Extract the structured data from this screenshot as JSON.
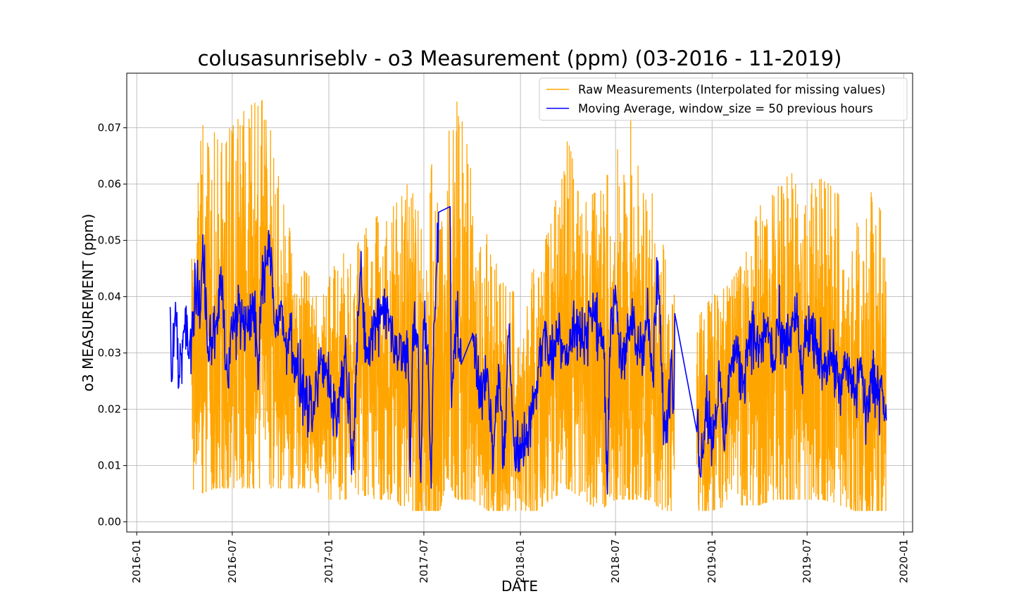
{
  "chart_data": {
    "type": "line",
    "title": "colusasunriseblv - o3 Measurement (ppm) (03-2016 - 11-2019)",
    "xlabel": "DATE",
    "ylabel": "o3 MEASUREMENT (ppm)",
    "x_range": [
      "2015-12-13",
      "2020-01-18"
    ],
    "ylim": [
      -0.0018,
      0.0797
    ],
    "x_ticks": [
      "2016-01",
      "2016-07",
      "2017-01",
      "2017-07",
      "2018-01",
      "2018-07",
      "2019-01",
      "2019-07",
      "2020-01"
    ],
    "y_ticks": [
      "0.00",
      "0.01",
      "0.02",
      "0.03",
      "0.04",
      "0.05",
      "0.06",
      "0.07"
    ],
    "grid": true,
    "legend_position": "top-right",
    "series": [
      {
        "name": "Raw Measurements (Interpolated for missing values)",
        "color": "#FFA500",
        "band_points": [
          [
            "2016-03-04",
            0.025,
            0.045,
            0.019
          ],
          [
            "2016-04-15",
            0.03,
            0.064,
            0.006
          ],
          [
            "2016-05-01",
            0.03,
            0.072,
            0.005
          ],
          [
            "2016-06-01",
            0.031,
            0.069,
            0.006
          ],
          [
            "2016-07-01",
            0.033,
            0.07,
            0.006
          ],
          [
            "2016-08-01",
            0.035,
            0.074,
            0.006
          ],
          [
            "2016-09-01",
            0.034,
            0.075,
            0.006
          ],
          [
            "2016-10-01",
            0.03,
            0.06,
            0.006
          ],
          [
            "2016-11-01",
            0.026,
            0.046,
            0.006
          ],
          [
            "2016-12-01",
            0.024,
            0.043,
            0.006
          ],
          [
            "2017-01-01",
            0.023,
            0.044,
            0.004
          ],
          [
            "2017-02-01",
            0.026,
            0.048,
            0.004
          ],
          [
            "2017-03-01",
            0.028,
            0.051,
            0.005
          ],
          [
            "2017-04-01",
            0.03,
            0.054,
            0.004
          ],
          [
            "2017-05-01",
            0.029,
            0.058,
            0.004
          ],
          [
            "2017-06-01",
            0.028,
            0.06,
            0.002
          ],
          [
            "2017-06-20",
            0.022,
            0.059,
            0.002
          ],
          [
            "2017-07-10",
            0.02,
            0.064,
            0.002
          ],
          [
            "2017-07-20",
            0.02,
            0.065,
            0.002
          ],
          [
            "2017-08-01",
            0.028,
            0.057,
            0.002
          ],
          [
            "2017-08-15",
            0.026,
            0.069,
            0.008
          ],
          [
            "2017-09-01",
            0.03,
            0.076,
            0.004
          ],
          [
            "2017-10-01",
            0.026,
            0.063,
            0.004
          ],
          [
            "2017-11-01",
            0.02,
            0.05,
            0.002
          ],
          [
            "2017-12-01",
            0.018,
            0.042,
            0.002
          ],
          [
            "2018-01-01",
            0.018,
            0.04,
            0.002
          ],
          [
            "2018-02-01",
            0.024,
            0.046,
            0.002
          ],
          [
            "2018-03-01",
            0.027,
            0.053,
            0.004
          ],
          [
            "2018-04-01",
            0.029,
            0.068,
            0.006
          ],
          [
            "2018-05-01",
            0.03,
            0.057,
            0.004
          ],
          [
            "2018-06-01",
            0.029,
            0.059,
            0.002
          ],
          [
            "2018-07-01",
            0.029,
            0.065,
            0.004
          ],
          [
            "2018-08-01",
            0.03,
            0.073,
            0.004
          ],
          [
            "2018-09-01",
            0.028,
            0.064,
            0.004
          ],
          [
            "2018-10-01",
            0.024,
            0.05,
            0.002
          ],
          [
            "2018-10-22",
            0.022,
            0.048,
            0.002
          ],
          [
            "2018-12-03",
            0.018,
            0.036,
            0.002
          ],
          [
            "2019-01-01",
            0.021,
            0.04,
            0.002
          ],
          [
            "2019-02-01",
            0.024,
            0.042,
            0.003
          ],
          [
            "2019-03-01",
            0.027,
            0.046,
            0.003
          ],
          [
            "2019-04-01",
            0.029,
            0.056,
            0.003
          ],
          [
            "2019-05-01",
            0.029,
            0.059,
            0.004
          ],
          [
            "2019-06-01",
            0.028,
            0.062,
            0.004
          ],
          [
            "2019-07-01",
            0.029,
            0.06,
            0.004
          ],
          [
            "2019-08-01",
            0.029,
            0.061,
            0.004
          ],
          [
            "2019-09-01",
            0.027,
            0.058,
            0.003
          ],
          [
            "2019-10-01",
            0.024,
            0.055,
            0.002
          ],
          [
            "2019-11-01",
            0.022,
            0.059,
            0.002
          ],
          [
            "2019-11-29",
            0.021,
            0.053,
            0.002
          ]
        ]
      },
      {
        "name": "Moving Average, window_size = 50 previous hours",
        "color": "#0000FF",
        "points": [
          [
            "2016-03-04",
            0.038
          ],
          [
            "2016-03-08",
            0.025
          ],
          [
            "2016-03-15",
            0.039
          ],
          [
            "2016-03-22",
            0.026
          ],
          [
            "2016-04-01",
            0.035
          ],
          [
            "2016-04-10",
            0.029
          ],
          [
            "2016-04-20",
            0.04
          ],
          [
            "2016-05-01",
            0.037
          ],
          [
            "2016-05-06",
            0.051
          ],
          [
            "2016-05-15",
            0.03
          ],
          [
            "2016-06-01",
            0.035
          ],
          [
            "2016-06-10",
            0.043
          ],
          [
            "2016-06-20",
            0.027
          ],
          [
            "2016-07-01",
            0.034
          ],
          [
            "2016-07-15",
            0.037
          ],
          [
            "2016-08-01",
            0.034
          ],
          [
            "2016-08-10",
            0.04
          ],
          [
            "2016-08-20",
            0.025
          ],
          [
            "2016-08-25",
            0.041
          ],
          [
            "2016-09-05",
            0.046
          ],
          [
            "2016-09-10",
            0.051
          ],
          [
            "2016-09-20",
            0.035
          ],
          [
            "2016-10-01",
            0.038
          ],
          [
            "2016-10-10",
            0.032
          ],
          [
            "2016-10-20",
            0.034
          ],
          [
            "2016-11-01",
            0.026
          ],
          [
            "2016-11-15",
            0.023
          ],
          [
            "2016-12-01",
            0.018
          ],
          [
            "2016-12-15",
            0.028
          ],
          [
            "2017-01-01",
            0.026
          ],
          [
            "2017-01-15",
            0.018
          ],
          [
            "2017-02-01",
            0.03
          ],
          [
            "2017-02-15",
            0.012
          ],
          [
            "2017-03-01",
            0.043
          ],
          [
            "2017-03-15",
            0.029
          ],
          [
            "2017-04-01",
            0.036
          ],
          [
            "2017-04-15",
            0.039
          ],
          [
            "2017-05-01",
            0.034
          ],
          [
            "2017-05-15",
            0.03
          ],
          [
            "2017-06-01",
            0.029
          ],
          [
            "2017-06-05",
            0.008
          ],
          [
            "2017-06-10",
            0.035
          ],
          [
            "2017-06-20",
            0.033
          ],
          [
            "2017-06-25",
            0.007
          ],
          [
            "2017-07-01",
            0.036
          ],
          [
            "2017-07-08",
            0.03
          ],
          [
            "2017-07-15",
            0.006
          ],
          [
            "2017-07-20",
            0.035
          ],
          [
            "2017-07-25",
            0.045
          ],
          [
            "2017-07-29",
            0.055
          ],
          [
            "2017-08-20",
            0.056
          ],
          [
            "2017-08-22",
            0.024
          ],
          [
            "2017-09-01",
            0.036
          ],
          [
            "2017-09-10",
            0.028
          ],
          [
            "2017-10-01",
            0.033
          ],
          [
            "2017-10-15",
            0.025
          ],
          [
            "2017-11-01",
            0.024
          ],
          [
            "2017-11-10",
            0.01
          ],
          [
            "2017-11-20",
            0.028
          ],
          [
            "2017-12-01",
            0.01
          ],
          [
            "2017-12-10",
            0.033
          ],
          [
            "2017-12-20",
            0.015
          ],
          [
            "2018-01-01",
            0.012
          ],
          [
            "2018-01-15",
            0.016
          ],
          [
            "2018-02-01",
            0.025
          ],
          [
            "2018-02-15",
            0.034
          ],
          [
            "2018-03-01",
            0.029
          ],
          [
            "2018-03-15",
            0.034
          ],
          [
            "2018-04-01",
            0.03
          ],
          [
            "2018-04-15",
            0.035
          ],
          [
            "2018-05-01",
            0.032
          ],
          [
            "2018-05-15",
            0.038
          ],
          [
            "2018-06-01",
            0.033
          ],
          [
            "2018-06-10",
            0.03
          ],
          [
            "2018-06-15",
            0.007
          ],
          [
            "2018-06-20",
            0.031
          ],
          [
            "2018-07-01",
            0.042
          ],
          [
            "2018-07-10",
            0.03
          ],
          [
            "2018-07-20",
            0.028
          ],
          [
            "2018-08-01",
            0.037
          ],
          [
            "2018-08-10",
            0.031
          ],
          [
            "2018-08-20",
            0.032
          ],
          [
            "2018-09-01",
            0.036
          ],
          [
            "2018-09-10",
            0.025
          ],
          [
            "2018-09-20",
            0.046
          ],
          [
            "2018-09-28",
            0.023
          ],
          [
            "2018-10-05",
            0.014
          ],
          [
            "2018-10-15",
            0.029
          ],
          [
            "2018-10-20",
            0.02
          ],
          [
            "2018-10-22",
            0.037
          ],
          [
            "2018-12-03",
            0.016
          ],
          [
            "2018-12-05",
            0.02
          ],
          [
            "2018-12-10",
            0.008
          ],
          [
            "2018-12-20",
            0.022
          ],
          [
            "2019-01-01",
            0.015
          ],
          [
            "2019-01-15",
            0.025
          ],
          [
            "2019-01-25",
            0.013
          ],
          [
            "2019-02-01",
            0.026
          ],
          [
            "2019-02-15",
            0.03
          ],
          [
            "2019-03-01",
            0.025
          ],
          [
            "2019-03-15",
            0.035
          ],
          [
            "2019-04-01",
            0.03
          ],
          [
            "2019-04-15",
            0.035
          ],
          [
            "2019-05-01",
            0.027
          ],
          [
            "2019-05-05",
            0.036
          ],
          [
            "2019-05-15",
            0.03
          ],
          [
            "2019-06-01",
            0.034
          ],
          [
            "2019-06-10",
            0.037
          ],
          [
            "2019-06-20",
            0.026
          ],
          [
            "2019-07-01",
            0.034
          ],
          [
            "2019-07-15",
            0.031
          ],
          [
            "2019-08-01",
            0.028
          ],
          [
            "2019-08-15",
            0.03
          ],
          [
            "2019-09-01",
            0.024
          ],
          [
            "2019-09-15",
            0.027
          ],
          [
            "2019-10-01",
            0.022
          ],
          [
            "2019-10-10",
            0.029
          ],
          [
            "2019-10-20",
            0.019
          ],
          [
            "2019-11-01",
            0.025
          ],
          [
            "2019-11-10",
            0.022
          ],
          [
            "2019-11-20",
            0.026
          ],
          [
            "2019-11-29",
            0.018
          ]
        ]
      }
    ]
  }
}
